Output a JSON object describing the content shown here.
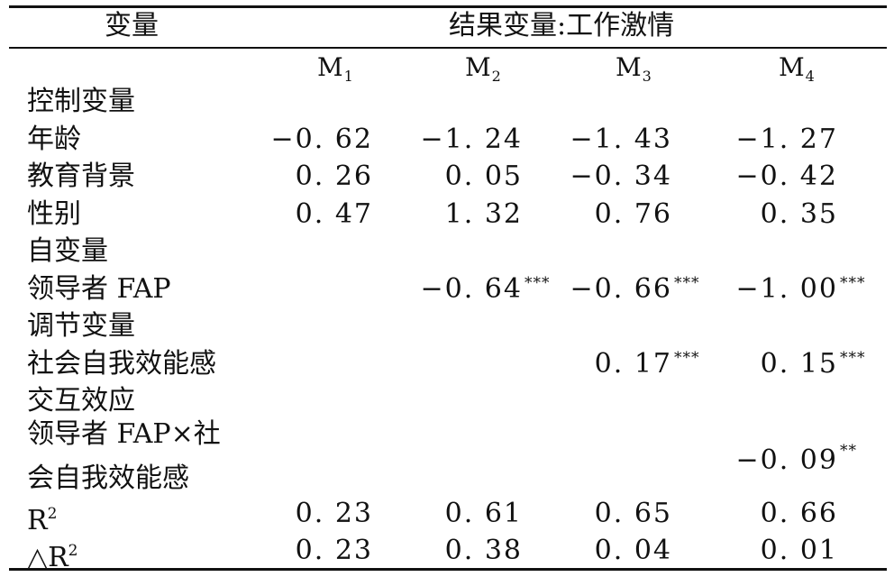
{
  "header": {
    "variable_col": "变量",
    "outcome_col": "结果变量:工作激情",
    "models": [
      {
        "base": "M",
        "sub": "1"
      },
      {
        "base": "M",
        "sub": "2"
      },
      {
        "base": "M",
        "sub": "3"
      },
      {
        "base": "M",
        "sub": "4"
      }
    ]
  },
  "rows": {
    "control_group": "控制变量",
    "age": {
      "label": "年龄",
      "m1": "−0. 62",
      "m2": "−1. 24",
      "m3": "−1. 43",
      "m4": "−1. 27"
    },
    "education": {
      "label": "教育背景",
      "m1": "0. 26",
      "m2": "0. 05",
      "m3": "−0. 34",
      "m4": "−0. 42"
    },
    "gender": {
      "label": "性别",
      "m1": "0. 47",
      "m2": "1. 32",
      "m3": "0. 76",
      "m4": "0. 35"
    },
    "independent_group": "自变量",
    "fap": {
      "label": "领导者 FAP",
      "m2": "−0. 64",
      "m2_sig": "***",
      "m3": "−0. 66",
      "m3_sig": "***",
      "m4": "−1. 00",
      "m4_sig": "***"
    },
    "moderator_group": "调节变量",
    "self_efficacy": {
      "label": "社会自我效能感",
      "m3": "0. 17",
      "m3_sig": "***",
      "m4": "0. 15",
      "m4_sig": "***"
    },
    "interaction_group": "交互效应",
    "interaction": {
      "label_line1": "领导者 FAP×社",
      "label_line2": "会自我效能感",
      "m4": "−0. 09",
      "m4_sig": "**"
    },
    "r2": {
      "label": "R",
      "sup": "2",
      "m1": "0. 23",
      "m2": "0. 61",
      "m3": "0. 65",
      "m4": "0. 66"
    },
    "delta_r2": {
      "label": "△R",
      "sup": "2",
      "m1": "0. 23",
      "m2": "0. 38",
      "m3": "0. 04",
      "m4": "0. 01"
    }
  }
}
